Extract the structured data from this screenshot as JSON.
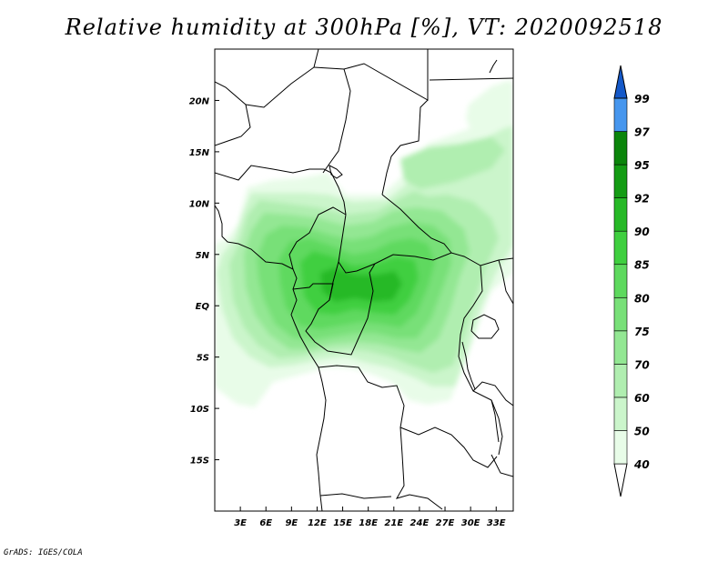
{
  "title": "Relative humidity at 300hPa [%], VT: 2020092518",
  "credit": "GrADS: IGES/COLA",
  "map": {
    "lon_range": [
      0,
      35
    ],
    "lat_range": [
      -20,
      25
    ],
    "lon_ticks": [
      {
        "value": 3,
        "label": "3E"
      },
      {
        "value": 6,
        "label": "6E"
      },
      {
        "value": 9,
        "label": "9E"
      },
      {
        "value": 12,
        "label": "12E"
      },
      {
        "value": 15,
        "label": "15E"
      },
      {
        "value": 18,
        "label": "18E"
      },
      {
        "value": 21,
        "label": "21E"
      },
      {
        "value": 24,
        "label": "24E"
      },
      {
        "value": 27,
        "label": "27E"
      },
      {
        "value": 30,
        "label": "30E"
      },
      {
        "value": 33,
        "label": "33E"
      }
    ],
    "lat_ticks": [
      {
        "value": 20,
        "label": "20N"
      },
      {
        "value": 15,
        "label": "15N"
      },
      {
        "value": 10,
        "label": "10N"
      },
      {
        "value": 5,
        "label": "5N"
      },
      {
        "value": 0,
        "label": "EQ"
      },
      {
        "value": -5,
        "label": "5S"
      },
      {
        "value": -10,
        "label": "10S"
      },
      {
        "value": -15,
        "label": "15S"
      }
    ]
  },
  "colorbar": {
    "levels": [
      "40",
      "50",
      "60",
      "70",
      "75",
      "80",
      "85",
      "90",
      "92",
      "95",
      "97",
      "99"
    ],
    "colors": [
      "#e8fce8",
      "#cbf5cb",
      "#b0eeb0",
      "#93e793",
      "#78e078",
      "#5ed95e",
      "#3fcf3f",
      "#27b927",
      "#149c14",
      "#0b850b",
      "#4696ee",
      "#2373dd",
      "#1458c8"
    ],
    "low_color": "#ffffff"
  },
  "colors": {
    "border": "#000000",
    "frame": "#000000"
  }
}
